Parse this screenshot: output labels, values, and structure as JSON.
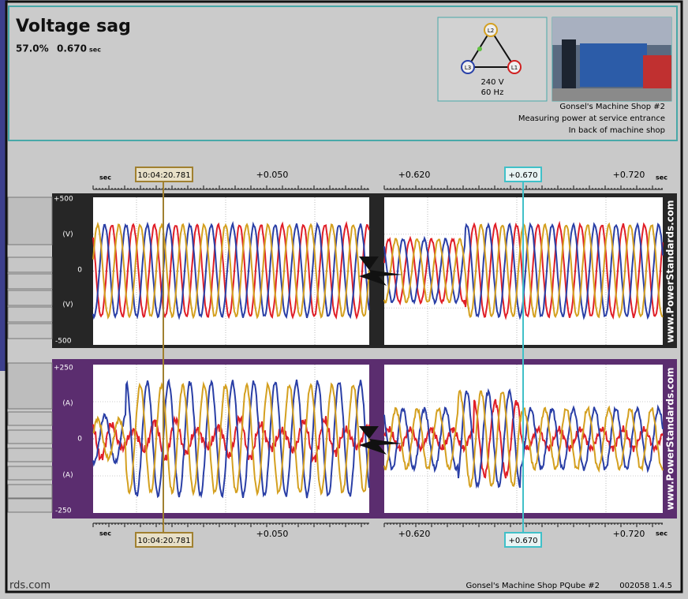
{
  "header": {
    "title": "Voltage sag",
    "depth": "57.0%",
    "duration": "0.670",
    "duration_unit": "sec"
  },
  "diagram": {
    "phases": [
      "L1",
      "L2",
      "L3"
    ],
    "voltage": "240 V",
    "frequency": "60 Hz"
  },
  "site": {
    "lines": [
      "Gonsel's Machine Shop #2",
      "Measuring power at service entrance",
      "In back of machine shop"
    ]
  },
  "time_axis": {
    "unit": "sec",
    "cursor_time": "10:04:20.781",
    "left_tick": "+0.050",
    "right_start": "+0.620",
    "cursor_offset": "+0.670",
    "right_end": "+0.720"
  },
  "voltage_panel": {
    "top": "+500",
    "unit": "(V)",
    "zero": "0",
    "bottom": "-500"
  },
  "current_panel": {
    "top": "+250",
    "unit": "(A)",
    "zero": "0",
    "bottom": "-250"
  },
  "watermark": "www.PowerStandards.com",
  "footer": {
    "left": "rds.com",
    "device": "Gonsel's Machine Shop PQube #2",
    "serial": "002058 1.4.5"
  }
}
